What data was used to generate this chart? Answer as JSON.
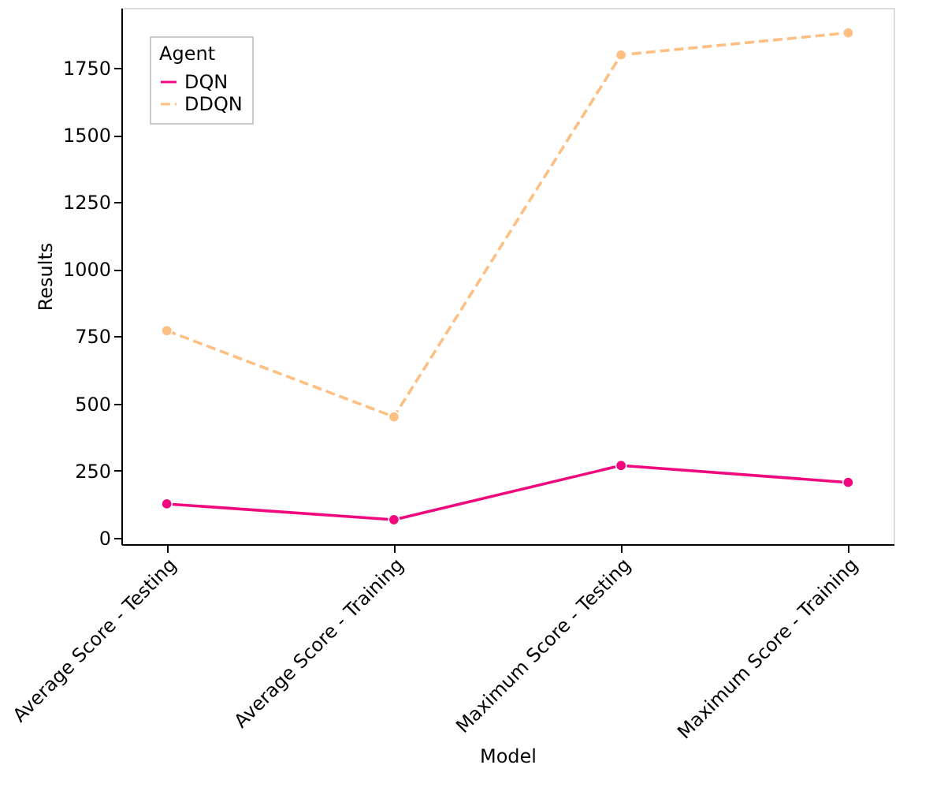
{
  "chart_data": {
    "type": "line",
    "xlabel": "Model",
    "ylabel": "Results",
    "legend_title": "Agent",
    "categories": [
      "Average Score - Testing",
      "Average Score - Training",
      "Maximum Score - Testing",
      "Maximum Score - Training"
    ],
    "series": [
      {
        "name": "DQN",
        "color": "#f0087f",
        "line_style": "solid",
        "values": [
          126,
          67,
          269,
          206
        ]
      },
      {
        "name": "DDQN",
        "color": "#fdbf82",
        "line_style": "dashed",
        "values": [
          771,
          450,
          1798,
          1880
        ]
      }
    ],
    "ylim": [
      -24,
      1973
    ],
    "yticks": [
      0,
      250,
      500,
      750,
      1000,
      1250,
      1500,
      1750
    ],
    "grid": false,
    "legend": "top left",
    "marker": "circle"
  }
}
